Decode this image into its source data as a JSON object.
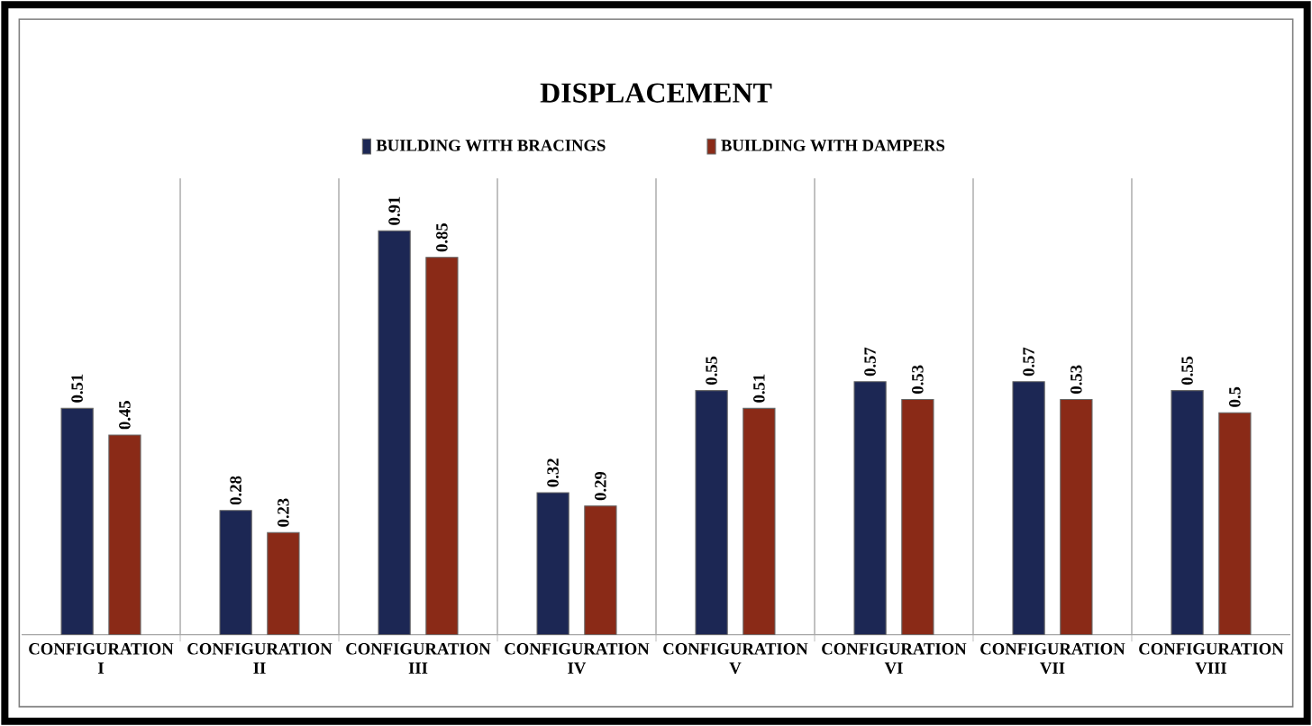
{
  "chart_data": {
    "type": "bar",
    "title": "DISPLACEMENT",
    "categories": [
      "CONFIGURATION I",
      "CONFIGURATION II",
      "CONFIGURATION III",
      "CONFIGURATION IV",
      "CONFIGURATION V",
      "CONFIGURATION VI",
      "CONFIGURATION VII",
      "CONFIGURATION VIII"
    ],
    "series": [
      {
        "name": "BUILDING WITH BRACINGS",
        "color": "#1c2754",
        "values": [
          0.51,
          0.28,
          0.91,
          0.32,
          0.55,
          0.57,
          0.57,
          0.55
        ]
      },
      {
        "name": "BUILDING WITH DAMPERS",
        "color": "#8a2a17",
        "values": [
          0.45,
          0.23,
          0.85,
          0.29,
          0.51,
          0.53,
          0.53,
          0.5
        ]
      }
    ],
    "data_labels": true,
    "grid": "x",
    "legend": "top",
    "tick_labels": "x"
  }
}
